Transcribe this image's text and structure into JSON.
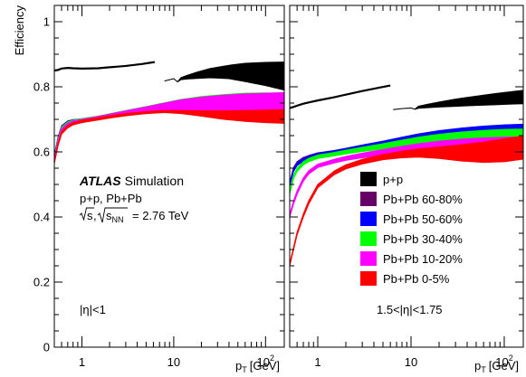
{
  "chart_data": [
    {
      "type": "area",
      "panel": "left",
      "ylabel": "Efficiency",
      "xlabel_main": "p",
      "xlabel_sub": "T",
      "xlabel_unit": "[GeV]",
      "x_scale": "log",
      "xlim": [
        0.5,
        160
      ],
      "ylim": [
        0,
        1.05
      ],
      "yticks": [
        "0",
        "0.2",
        "0.4",
        "0.6",
        "0.8",
        "1"
      ],
      "ytick_values": [
        0,
        0.2,
        0.4,
        0.6,
        0.8,
        1.0
      ],
      "xticks": [
        {
          "value": 1,
          "label": "1"
        },
        {
          "value": 10,
          "label": "10"
        },
        {
          "value": 100,
          "label": "10",
          "sup": "2"
        }
      ],
      "eta_label": "|η|<1",
      "atlas_label": "ATLAS",
      "atlas_sub": "Simulation",
      "collision_label": "p+p, Pb+Pb",
      "energy_label_sqrt_s": "s",
      "energy_label_sep": ",",
      "energy_label_sqrt_snn": "s",
      "energy_label_snn_sub": "NN",
      "energy_label_value": "= 2.76 TeV",
      "series": [
        {
          "name": "p+p",
          "color": "#000000",
          "style": "line",
          "x": [
            0.5,
            0.55,
            0.6,
            0.7,
            0.8,
            1.0,
            1.5,
            2.0,
            3.0,
            4.5,
            6.2
          ],
          "y": [
            0.85,
            0.852,
            0.856,
            0.858,
            0.857,
            0.856,
            0.857,
            0.86,
            0.864,
            0.87,
            0.876
          ]
        },
        {
          "name": "p+p",
          "color": "#000000",
          "style": "band",
          "x": [
            8,
            10,
            11,
            12,
            14,
            18,
            25,
            40,
            60,
            100,
            160
          ],
          "lo": [
            0.818,
            0.825,
            0.815,
            0.822,
            0.824,
            0.826,
            0.828,
            0.825,
            0.816,
            0.804,
            0.79
          ],
          "hi": [
            0.818,
            0.825,
            0.815,
            0.828,
            0.835,
            0.845,
            0.856,
            0.866,
            0.872,
            0.875,
            0.876
          ]
        },
        {
          "name": "Pb+Pb 60-80%",
          "color": "#660066",
          "style": "band",
          "x": [
            0.5,
            0.55,
            0.6,
            0.7,
            0.8,
            1.0,
            1.5,
            2.0,
            3.0,
            5.0,
            8.0,
            12,
            20,
            35,
            60,
            100,
            160
          ],
          "lo": [
            0.585,
            0.64,
            0.674,
            0.69,
            0.694,
            0.697,
            0.702,
            0.707,
            0.712,
            0.718,
            0.724,
            0.729,
            0.732,
            0.733,
            0.733,
            0.732,
            0.73
          ],
          "hi": [
            0.59,
            0.646,
            0.68,
            0.695,
            0.699,
            0.701,
            0.706,
            0.711,
            0.717,
            0.724,
            0.73,
            0.735,
            0.739,
            0.741,
            0.742,
            0.741,
            0.739
          ]
        },
        {
          "name": "Pb+Pb 50-60%",
          "color": "#0000ff",
          "style": "band",
          "x": [
            0.5,
            0.55,
            0.6,
            0.7,
            0.8,
            1.0,
            1.5,
            2.0,
            3.0,
            5.0,
            8.0,
            12,
            20,
            35,
            60,
            100,
            160
          ],
          "lo": [
            0.582,
            0.638,
            0.672,
            0.688,
            0.693,
            0.697,
            0.704,
            0.71,
            0.718,
            0.728,
            0.737,
            0.744,
            0.75,
            0.754,
            0.756,
            0.755,
            0.752
          ],
          "hi": [
            0.587,
            0.644,
            0.678,
            0.694,
            0.698,
            0.702,
            0.709,
            0.716,
            0.725,
            0.736,
            0.746,
            0.754,
            0.761,
            0.766,
            0.768,
            0.767,
            0.765
          ]
        },
        {
          "name": "Pb+Pb 30-40%",
          "color": "#00ff00",
          "style": "band",
          "x": [
            0.5,
            0.55,
            0.6,
            0.7,
            0.8,
            1.0,
            1.5,
            2.0,
            3.0,
            5.0,
            8.0,
            12,
            20,
            35,
            60,
            100,
            160
          ],
          "lo": [
            0.578,
            0.634,
            0.668,
            0.685,
            0.691,
            0.696,
            0.704,
            0.71,
            0.718,
            0.727,
            0.735,
            0.741,
            0.746,
            0.749,
            0.75,
            0.748,
            0.745
          ],
          "hi": [
            0.584,
            0.641,
            0.676,
            0.692,
            0.697,
            0.702,
            0.71,
            0.717,
            0.727,
            0.739,
            0.751,
            0.761,
            0.77,
            0.776,
            0.78,
            0.781,
            0.78
          ]
        },
        {
          "name": "Pb+Pb 10-20%",
          "color": "#ff00ff",
          "style": "band",
          "x": [
            0.5,
            0.55,
            0.6,
            0.7,
            0.8,
            1.0,
            1.5,
            2.0,
            3.0,
            5.0,
            8.0,
            12,
            20,
            35,
            60,
            100,
            160
          ],
          "lo": [
            0.572,
            0.628,
            0.662,
            0.68,
            0.688,
            0.694,
            0.702,
            0.707,
            0.714,
            0.721,
            0.726,
            0.728,
            0.728,
            0.727,
            0.727,
            0.728,
            0.73
          ],
          "hi": [
            0.578,
            0.636,
            0.671,
            0.688,
            0.695,
            0.7,
            0.709,
            0.716,
            0.726,
            0.738,
            0.75,
            0.76,
            0.768,
            0.774,
            0.778,
            0.78,
            0.782
          ]
        },
        {
          "name": "Pb+Pb 0-5%",
          "color": "#ff0000",
          "style": "band",
          "x": [
            0.5,
            0.55,
            0.6,
            0.7,
            0.8,
            1.0,
            1.5,
            2.0,
            3.0,
            5.0,
            8.0,
            12,
            20,
            35,
            60,
            100,
            160
          ],
          "lo": [
            0.565,
            0.62,
            0.655,
            0.674,
            0.683,
            0.69,
            0.698,
            0.704,
            0.711,
            0.718,
            0.721,
            0.718,
            0.71,
            0.7,
            0.694,
            0.69,
            0.688
          ],
          "hi": [
            0.57,
            0.627,
            0.662,
            0.681,
            0.69,
            0.697,
            0.705,
            0.711,
            0.718,
            0.724,
            0.727,
            0.727,
            0.726,
            0.726,
            0.727,
            0.728,
            0.73
          ]
        }
      ]
    },
    {
      "type": "area",
      "panel": "right",
      "xlabel_main": "p",
      "xlabel_sub": "T",
      "xlabel_unit": "[GeV]",
      "x_scale": "log",
      "xlim": [
        0.5,
        160
      ],
      "ylim": [
        0,
        1.05
      ],
      "xticks": [
        {
          "value": 1,
          "label": "1"
        },
        {
          "value": 10,
          "label": "10"
        },
        {
          "value": 100,
          "label": "10",
          "sup": "2"
        }
      ],
      "eta_label": "1.5<|η|<1.75",
      "legend_position": "center-right",
      "legend": [
        {
          "label": "p+p",
          "color": "#000000"
        },
        {
          "label": "Pb+Pb 60-80%",
          "color": "#660066"
        },
        {
          "label": "Pb+Pb 50-60%",
          "color": "#0000ff"
        },
        {
          "label": "Pb+Pb 30-40%",
          "color": "#00ff00"
        },
        {
          "label": "Pb+Pb 10-20%",
          "color": "#ff00ff"
        },
        {
          "label": "Pb+Pb 0-5%",
          "color": "#ff0000"
        }
      ],
      "series": [
        {
          "name": "p+p",
          "color": "#000000",
          "style": "line",
          "x": [
            0.5,
            0.55,
            0.6,
            0.7,
            0.8,
            1.0,
            1.5,
            2.0,
            3.0,
            4.5,
            6.0
          ],
          "y": [
            0.735,
            0.738,
            0.742,
            0.748,
            0.752,
            0.758,
            0.768,
            0.776,
            0.787,
            0.797,
            0.804
          ]
        },
        {
          "name": "p+p",
          "color": "#000000",
          "style": "band",
          "x": [
            6.5,
            8,
            10,
            11,
            12,
            15,
            20,
            30,
            50,
            80,
            120,
            160
          ],
          "lo": [
            0.73,
            0.733,
            0.735,
            0.731,
            0.734,
            0.736,
            0.738,
            0.74,
            0.743,
            0.745,
            0.747,
            0.748
          ],
          "hi": [
            0.73,
            0.733,
            0.735,
            0.731,
            0.74,
            0.746,
            0.753,
            0.762,
            0.771,
            0.779,
            0.785,
            0.789
          ]
        },
        {
          "name": "Pb+Pb 60-80%",
          "color": "#660066",
          "style": "band",
          "x": [
            0.5,
            0.55,
            0.6,
            0.7,
            0.8,
            1.0,
            1.5,
            2.0,
            3.0,
            5.0,
            8.0,
            12,
            20,
            35,
            60,
            100,
            160
          ],
          "lo": [
            0.5,
            0.545,
            0.563,
            0.576,
            0.582,
            0.59,
            0.597,
            0.603,
            0.611,
            0.62,
            0.63,
            0.638,
            0.646,
            0.652,
            0.656,
            0.657,
            0.656
          ],
          "hi": [
            0.506,
            0.552,
            0.57,
            0.583,
            0.589,
            0.597,
            0.604,
            0.61,
            0.619,
            0.63,
            0.641,
            0.65,
            0.66,
            0.668,
            0.673,
            0.675,
            0.676
          ]
        },
        {
          "name": "Pb+Pb 50-60%",
          "color": "#0000ff",
          "style": "band",
          "x": [
            0.5,
            0.55,
            0.6,
            0.7,
            0.8,
            1.0,
            1.5,
            2.0,
            3.0,
            5.0,
            8.0,
            12,
            20,
            35,
            60,
            100,
            160
          ],
          "lo": [
            0.495,
            0.54,
            0.558,
            0.572,
            0.579,
            0.588,
            0.596,
            0.602,
            0.61,
            0.62,
            0.63,
            0.638,
            0.646,
            0.652,
            0.656,
            0.657,
            0.656
          ],
          "hi": [
            0.502,
            0.548,
            0.566,
            0.58,
            0.587,
            0.596,
            0.604,
            0.611,
            0.621,
            0.633,
            0.645,
            0.655,
            0.665,
            0.673,
            0.679,
            0.683,
            0.685
          ]
        },
        {
          "name": "Pb+Pb 30-40%",
          "color": "#00ff00",
          "style": "band",
          "x": [
            0.5,
            0.55,
            0.6,
            0.7,
            0.8,
            1.0,
            1.5,
            2.0,
            3.0,
            5.0,
            8.0,
            12,
            20,
            35,
            60,
            100,
            160
          ],
          "lo": [
            0.47,
            0.518,
            0.54,
            0.56,
            0.57,
            0.58,
            0.588,
            0.594,
            0.601,
            0.609,
            0.617,
            0.623,
            0.629,
            0.633,
            0.635,
            0.634,
            0.632
          ],
          "hi": [
            0.478,
            0.527,
            0.55,
            0.57,
            0.58,
            0.59,
            0.598,
            0.605,
            0.614,
            0.625,
            0.636,
            0.645,
            0.654,
            0.661,
            0.666,
            0.669,
            0.67
          ]
        },
        {
          "name": "Pb+Pb 10-20%",
          "color": "#ff00ff",
          "style": "band",
          "x": [
            0.5,
            0.55,
            0.6,
            0.7,
            0.8,
            1.0,
            1.5,
            2.0,
            3.0,
            5.0,
            8.0,
            12,
            20,
            35,
            60,
            100,
            160
          ],
          "lo": [
            0.4,
            0.44,
            0.47,
            0.51,
            0.532,
            0.552,
            0.566,
            0.574,
            0.582,
            0.59,
            0.597,
            0.602,
            0.606,
            0.608,
            0.608,
            0.606,
            0.603
          ],
          "hi": [
            0.408,
            0.449,
            0.48,
            0.52,
            0.542,
            0.562,
            0.577,
            0.586,
            0.596,
            0.607,
            0.617,
            0.625,
            0.633,
            0.639,
            0.643,
            0.645,
            0.646
          ]
        },
        {
          "name": "Pb+Pb 0-5%",
          "color": "#ff0000",
          "style": "band",
          "x": [
            0.5,
            0.55,
            0.6,
            0.7,
            0.8,
            1.0,
            1.5,
            2.0,
            3.0,
            5.0,
            8.0,
            12,
            20,
            35,
            60,
            100,
            160
          ],
          "lo": [
            0.25,
            0.3,
            0.345,
            0.4,
            0.44,
            0.49,
            0.53,
            0.548,
            0.563,
            0.576,
            0.582,
            0.584,
            0.58,
            0.572,
            0.568,
            0.57,
            0.578
          ],
          "hi": [
            0.256,
            0.307,
            0.353,
            0.409,
            0.45,
            0.5,
            0.541,
            0.56,
            0.577,
            0.592,
            0.602,
            0.609,
            0.615,
            0.622,
            0.63,
            0.64,
            0.648
          ]
        }
      ]
    }
  ]
}
